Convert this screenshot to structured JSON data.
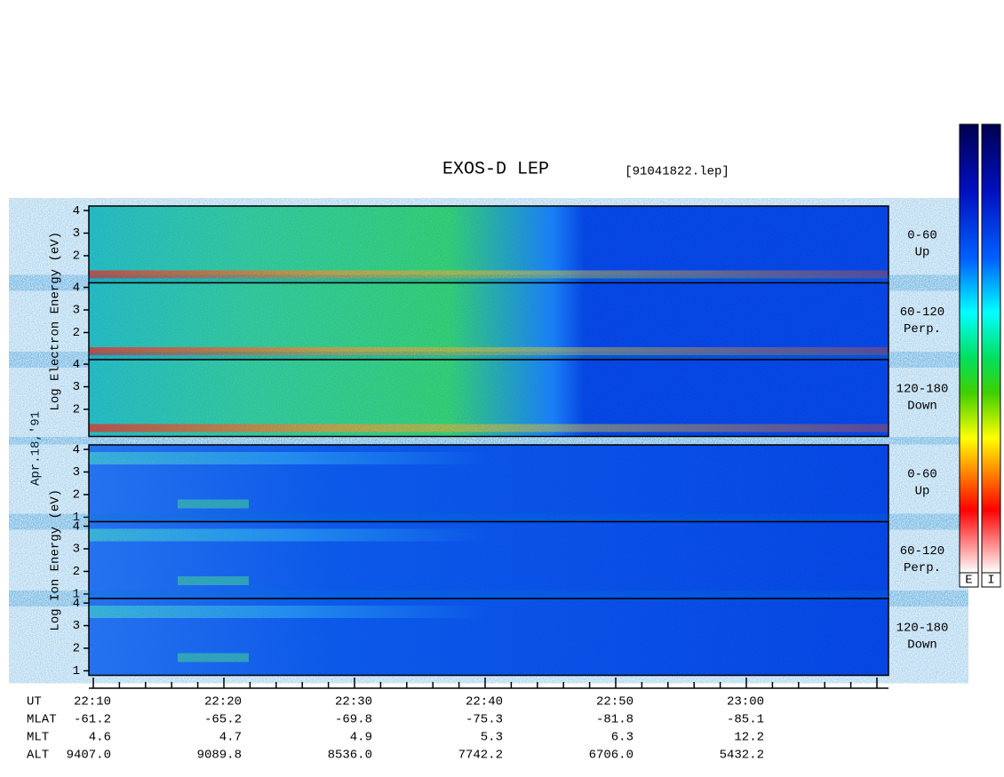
{
  "title": "EXOS-D LEP",
  "file": "[91041822.lep]",
  "date": "Apr.18,'91",
  "ylim": [
    0.8,
    4.2
  ],
  "electron_panels": {
    "axis_label": "Log  Electron  Energy (eV)",
    "yticks": [
      2,
      3,
      4
    ],
    "panels": [
      {
        "angle": "0-60",
        "direction": "Up"
      },
      {
        "angle": "60-120",
        "direction": "Perp."
      },
      {
        "angle": "120-180",
        "direction": "Down"
      }
    ]
  },
  "ion_panels": {
    "axis_label": "Log  Ion  Energy (eV)",
    "yticks": [
      1,
      2,
      3,
      4
    ],
    "panels": [
      {
        "angle": "0-60",
        "direction": "Up"
      },
      {
        "angle": "60-120",
        "direction": "Perp."
      },
      {
        "angle": "120-180",
        "direction": "Down"
      }
    ]
  },
  "x_axis": {
    "rows": [
      {
        "label": "UT",
        "values": [
          "22:10",
          "22:20",
          "22:30",
          "22:40",
          "22:50",
          "23:00"
        ]
      },
      {
        "label": "MLAT",
        "values": [
          "-61.2",
          "-65.2",
          "-69.8",
          "-75.3",
          "-81.8",
          "-85.1"
        ]
      },
      {
        "label": "MLT",
        "values": [
          "4.6",
          "4.7",
          "4.9",
          "5.3",
          "6.3",
          "12.2"
        ]
      },
      {
        "label": "ALT",
        "values": [
          "9407.0",
          "9089.8",
          "8536.0",
          "7742.2",
          "6706.0",
          "5432.2"
        ]
      }
    ]
  },
  "colorbars": [
    "E",
    "I"
  ]
}
